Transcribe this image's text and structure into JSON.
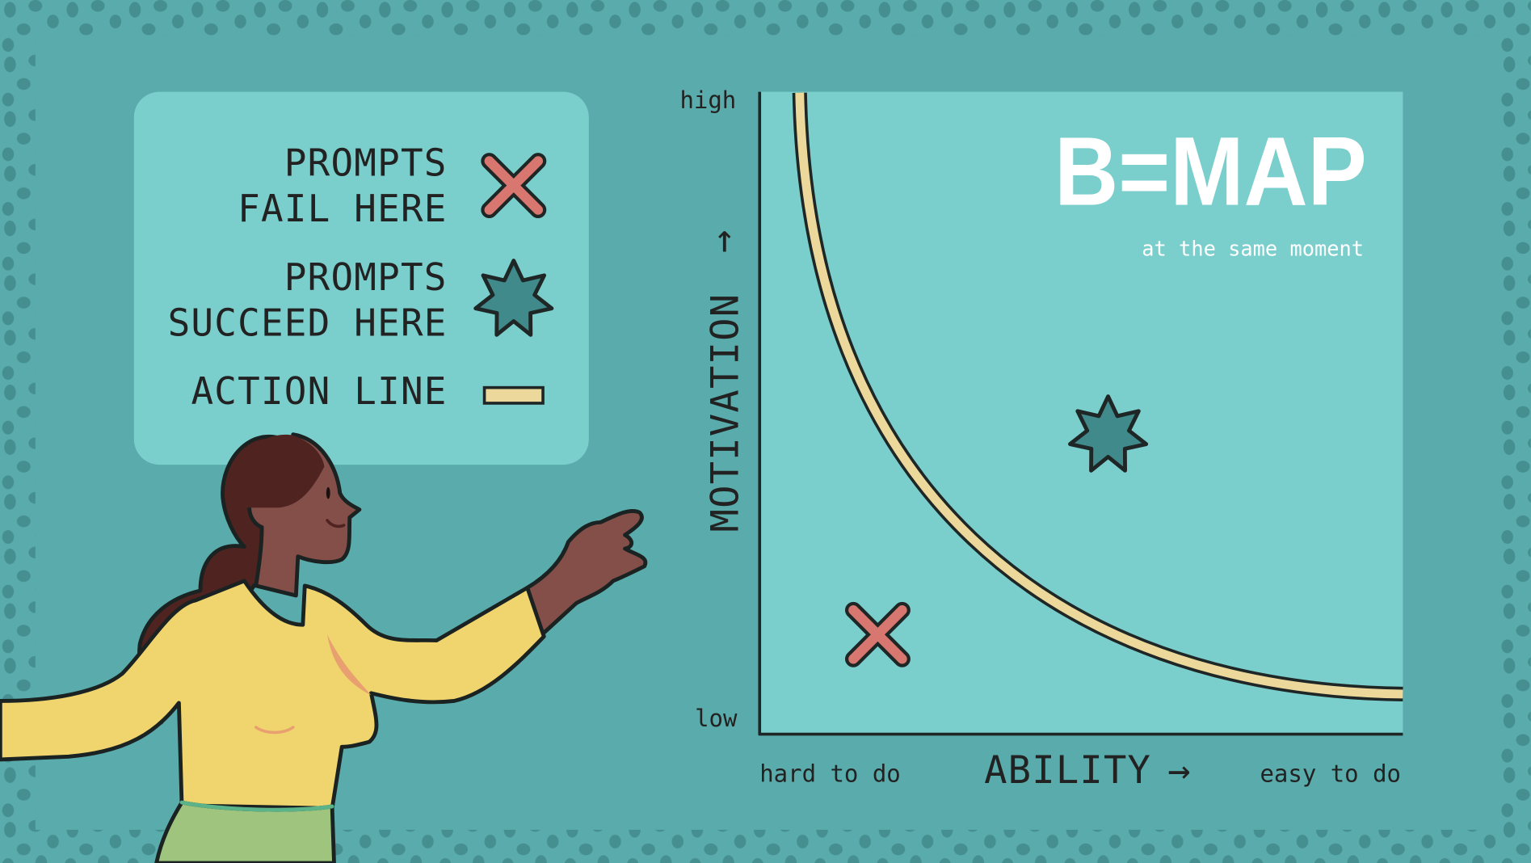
{
  "legend": {
    "items": [
      {
        "lines": [
          "PROMPTS",
          "FAIL HERE"
        ],
        "icon": "x-mark-icon"
      },
      {
        "lines": [
          "PROMPTS",
          "SUCCEED HERE"
        ],
        "icon": "star-burst-icon"
      },
      {
        "lines": [
          "ACTION LINE"
        ],
        "icon": "action-line-swatch"
      }
    ]
  },
  "chart": {
    "title": "B=MAP",
    "subtitle": "at the same moment",
    "y_axis": {
      "label": "MOTIVATION",
      "arrow": "↑",
      "high": "high",
      "low": "low"
    },
    "x_axis": {
      "label": "ABILITY",
      "arrow": "→",
      "low": "hard to do",
      "high": "easy to do"
    }
  },
  "colors": {
    "background": "#5aabab",
    "panel": "#7acfcc",
    "dots": "#458f90",
    "outline": "#1e2626",
    "fail_x": "#d8776f",
    "success_star": "#408a8b",
    "action_line": "#ecd89b",
    "title_text": "#ffffff"
  }
}
